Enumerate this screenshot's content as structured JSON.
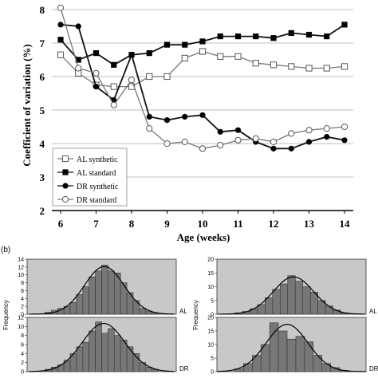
{
  "chart_data": [
    {
      "type": "line",
      "ylabel": "Coefficient of variation (%)",
      "xlabel": "Age (weeks)",
      "xlim": [
        6,
        14
      ],
      "ylim": [
        2,
        8
      ],
      "yticks": [
        "2",
        "3",
        "4",
        "5",
        "6",
        "7",
        "8"
      ],
      "xticks": [
        "6",
        "7",
        "8",
        "9",
        "10",
        "11",
        "12",
        "13",
        "14"
      ],
      "grid": "horizontal",
      "legend_position": "bottom-left",
      "x": [
        6,
        6.5,
        7,
        7.5,
        8,
        8.5,
        9,
        9.5,
        10,
        10.5,
        11,
        11.5,
        12,
        12.5,
        13,
        13.5,
        14
      ],
      "series": [
        {
          "name": "AL synthetic",
          "marker": "open-square",
          "values": [
            6.65,
            6.1,
            5.75,
            5.7,
            5.7,
            6.0,
            6.0,
            6.55,
            6.75,
            6.6,
            6.6,
            6.4,
            6.35,
            6.3,
            6.25,
            6.25,
            6.3
          ]
        },
        {
          "name": "AL standard",
          "marker": "filled-square",
          "values": [
            7.1,
            6.5,
            6.7,
            6.35,
            6.65,
            6.7,
            6.95,
            6.95,
            7.05,
            7.2,
            7.2,
            7.2,
            7.15,
            7.3,
            7.25,
            7.2,
            7.55
          ]
        },
        {
          "name": "DR synthetic",
          "marker": "filled-circle",
          "values": [
            7.55,
            7.5,
            5.7,
            5.3,
            6.65,
            4.8,
            4.7,
            4.8,
            4.85,
            4.35,
            4.4,
            4.05,
            3.85,
            3.85,
            4.05,
            4.2,
            4.1
          ]
        },
        {
          "name": "DR standard",
          "marker": "open-circle",
          "values": [
            8.05,
            6.25,
            6.1,
            5.15,
            5.9,
            4.45,
            4.0,
            4.05,
            3.85,
            3.95,
            4.1,
            4.15,
            4.05,
            4.3,
            4.4,
            4.45,
            4.5
          ]
        }
      ]
    },
    {
      "type": "bar",
      "panel_label": "(b)",
      "ylabel": "Frequency",
      "histograms": [
        {
          "label": "AL",
          "ylim": [
            0,
            14
          ],
          "yticks": [
            "0",
            "2",
            "4",
            "6",
            "8",
            "10",
            "12",
            "14"
          ],
          "values": [
            0.5,
            1,
            1.5,
            2,
            3,
            5,
            7,
            9.5,
            11,
            12.5,
            11,
            10.5,
            8,
            5.5,
            3.5,
            1.5,
            0.8,
            0.3
          ]
        },
        {
          "label": "DR",
          "ylim": [
            0,
            12
          ],
          "yticks": [
            "0",
            "2",
            "4",
            "6",
            "8",
            "10",
            "12"
          ],
          "values": [
            0.5,
            1,
            1.5,
            2.5,
            4,
            5.5,
            6.5,
            9,
            11,
            8.5,
            9.5,
            8,
            7,
            5.5,
            4,
            2,
            1,
            0.5
          ]
        },
        {
          "label": "AL",
          "ylim": [
            0,
            20
          ],
          "yticks": [
            "0",
            "5",
            "10",
            "15",
            "20"
          ],
          "values": [
            0.5,
            1,
            2,
            3.5,
            6,
            9,
            11,
            14,
            12,
            10,
            8,
            5,
            3,
            1.5,
            0.5
          ]
        },
        {
          "label": "DR",
          "ylim": [
            0,
            20
          ],
          "yticks": [
            "0",
            "5",
            "10",
            "15",
            "20"
          ],
          "values": [
            1,
            3,
            6,
            10,
            18,
            15,
            12,
            13,
            11,
            6,
            3,
            1.5,
            0.5
          ]
        }
      ]
    }
  ]
}
